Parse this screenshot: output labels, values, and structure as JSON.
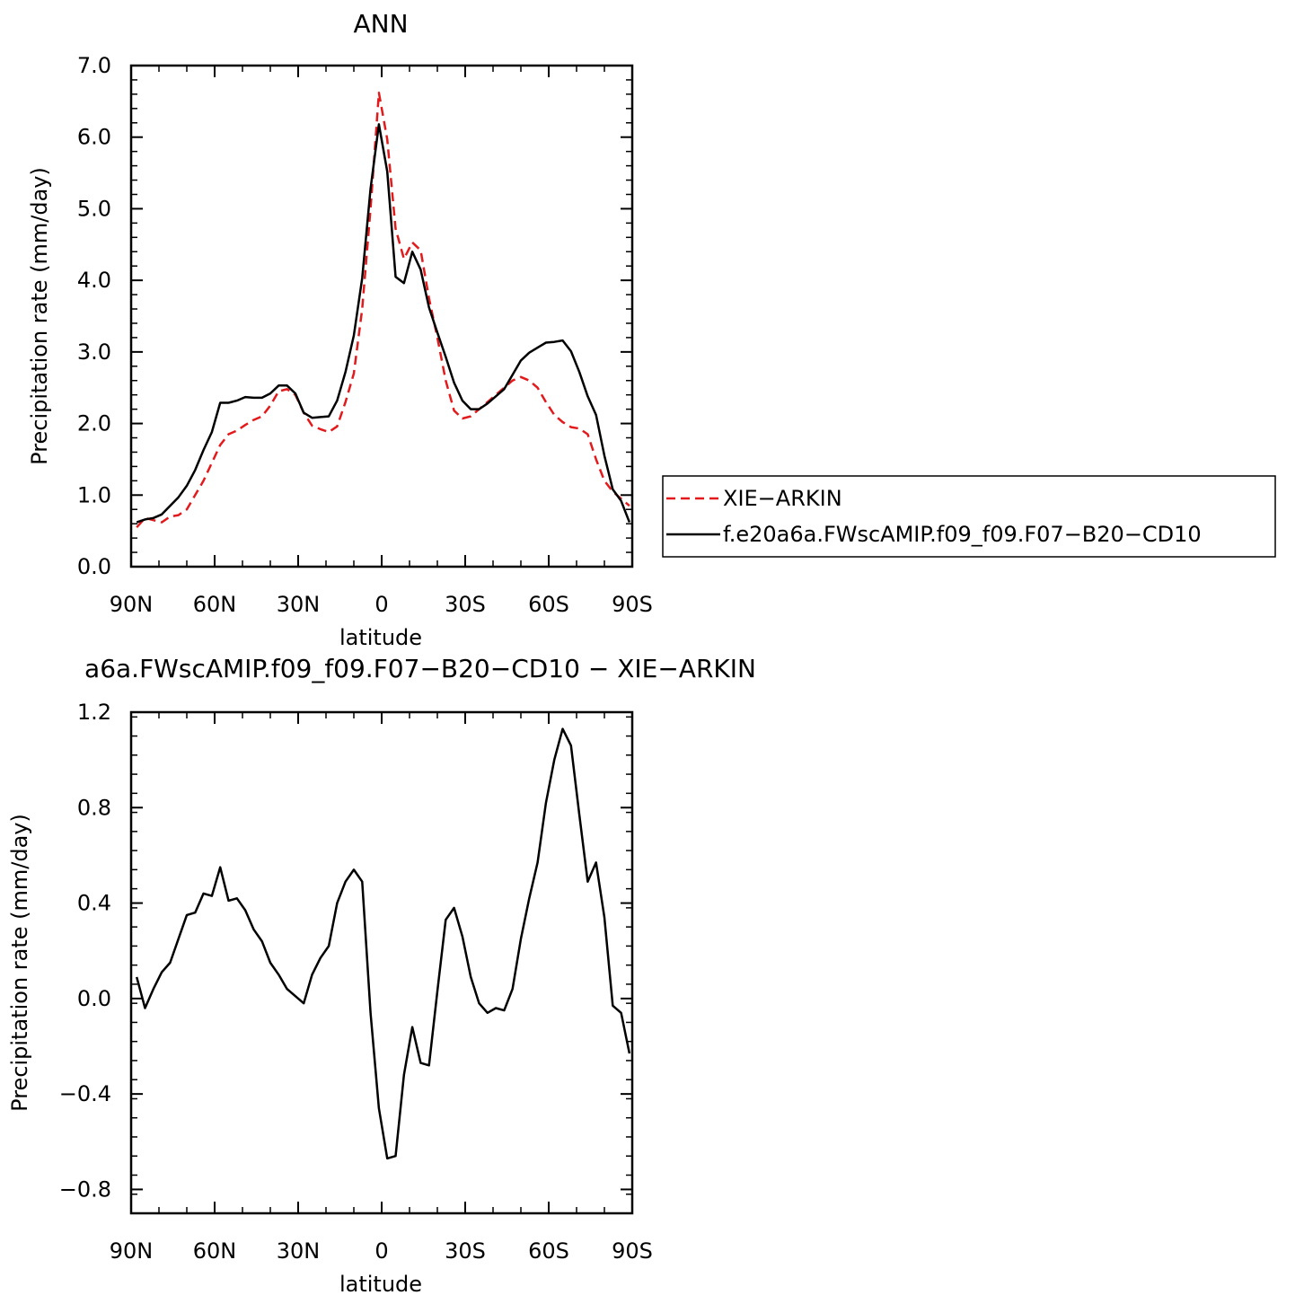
{
  "chart_data": [
    {
      "type": "line",
      "title": "ANN",
      "xlabel": "latitude",
      "ylabel": "Precipitation rate (mm/day)",
      "xlim": [
        90,
        -90
      ],
      "ylim": [
        0.0,
        7.0
      ],
      "xticks": [
        90,
        60,
        30,
        0,
        -30,
        -60,
        -90
      ],
      "xtick_labels": [
        "90N",
        "60N",
        "30N",
        "0",
        "30S",
        "60S",
        "90S"
      ],
      "yticks": [
        0.0,
        1.0,
        2.0,
        3.0,
        4.0,
        5.0,
        6.0,
        7.0
      ],
      "ytick_labels": [
        "0.0",
        "1.0",
        "2.0",
        "3.0",
        "4.0",
        "5.0",
        "6.0",
        "7.0"
      ],
      "legend": "right-outside",
      "series": [
        {
          "name": "XIE−ARKIN",
          "color": "#e31a1c",
          "dash": "dashed",
          "x": [
            88,
            85,
            82,
            79,
            76,
            73,
            70,
            67,
            64,
            61,
            58,
            55,
            52,
            49,
            46,
            43,
            40,
            37,
            34,
            31,
            28,
            25,
            22,
            19,
            16,
            13,
            10,
            7,
            4,
            1,
            -2,
            -5,
            -8,
            -11,
            -14,
            -17,
            -20,
            -23,
            -26,
            -29,
            -32,
            -35,
            -38,
            -41,
            -44,
            -47,
            -50,
            -53,
            -56,
            -59,
            -62,
            -65,
            -68,
            -71,
            -74,
            -77,
            -80,
            -83,
            -86,
            -89
          ],
          "values": [
            0.55,
            0.68,
            0.65,
            0.62,
            0.7,
            0.72,
            0.8,
            1.0,
            1.2,
            1.45,
            1.7,
            1.85,
            1.9,
            1.98,
            2.05,
            2.1,
            2.25,
            2.45,
            2.48,
            2.4,
            2.15,
            1.97,
            1.92,
            1.88,
            1.96,
            2.3,
            2.7,
            3.6,
            5.0,
            6.62,
            5.97,
            4.72,
            4.3,
            4.53,
            4.42,
            3.75,
            3.2,
            2.6,
            2.18,
            2.07,
            2.1,
            2.2,
            2.3,
            2.4,
            2.5,
            2.6,
            2.65,
            2.6,
            2.5,
            2.3,
            2.12,
            2.02,
            1.95,
            1.93,
            1.85,
            1.5,
            1.2,
            1.05,
            0.95,
            0.85
          ]
        },
        {
          "name": "f.e20a6a.FWscAMIP.f09_f09.F07−B20−CD10",
          "color": "#000000",
          "dash": "solid",
          "x": [
            88,
            85,
            82,
            79,
            76,
            73,
            70,
            67,
            64,
            61,
            58,
            55,
            52,
            49,
            46,
            43,
            40,
            37,
            34,
            31,
            28,
            25,
            22,
            19,
            16,
            13,
            10,
            7,
            4,
            1,
            -2,
            -5,
            -8,
            -11,
            -14,
            -17,
            -20,
            -23,
            -26,
            -29,
            -32,
            -35,
            -38,
            -41,
            -44,
            -47,
            -50,
            -53,
            -56,
            -59,
            -62,
            -65,
            -68,
            -71,
            -74,
            -77,
            -80,
            -83,
            -86,
            -89
          ],
          "values": [
            0.62,
            0.66,
            0.68,
            0.73,
            0.85,
            0.97,
            1.13,
            1.35,
            1.63,
            1.88,
            2.29,
            2.29,
            2.32,
            2.37,
            2.36,
            2.36,
            2.42,
            2.53,
            2.53,
            2.42,
            2.15,
            2.08,
            2.09,
            2.1,
            2.32,
            2.72,
            3.23,
            4.03,
            5.28,
            6.18,
            5.52,
            4.05,
            3.96,
            4.4,
            4.15,
            3.62,
            3.27,
            2.93,
            2.57,
            2.32,
            2.2,
            2.2,
            2.28,
            2.38,
            2.48,
            2.68,
            2.88,
            2.99,
            3.06,
            3.13,
            3.14,
            3.16,
            3.01,
            2.72,
            2.38,
            2.12,
            1.55,
            1.08,
            0.92,
            0.62
          ]
        }
      ]
    },
    {
      "type": "line",
      "title": "a6a.FWscAMIP.f09_f09.F07−B20−CD10  −  XIE−ARKIN",
      "xlabel": "latitude",
      "ylabel": "Precipitation rate (mm/day)",
      "xlim": [
        90,
        -90
      ],
      "ylim": [
        -0.9,
        1.2
      ],
      "xticks": [
        90,
        60,
        30,
        0,
        -30,
        -60,
        -90
      ],
      "xtick_labels": [
        "90N",
        "60N",
        "30N",
        "0",
        "30S",
        "60S",
        "90S"
      ],
      "yticks": [
        -0.8,
        -0.4,
        0.0,
        0.4,
        0.8,
        1.2
      ],
      "ytick_labels": [
        "−0.8",
        "−0.4",
        "0.0",
        "0.4",
        "0.8",
        "1.2"
      ],
      "series": [
        {
          "color": "#000000",
          "dash": "solid",
          "x": [
            88,
            85,
            82,
            79,
            76,
            73,
            70,
            67,
            64,
            61,
            58,
            55,
            52,
            49,
            46,
            43,
            40,
            37,
            34,
            31,
            28,
            25,
            22,
            19,
            16,
            13,
            10,
            7,
            4,
            1,
            -2,
            -5,
            -8,
            -11,
            -14,
            -17,
            -20,
            -23,
            -26,
            -29,
            -32,
            -35,
            -38,
            -41,
            -44,
            -47,
            -50,
            -53,
            -56,
            -59,
            -62,
            -65,
            -68,
            -71,
            -74,
            -77,
            -80,
            -83,
            -86,
            -89
          ],
          "values": [
            0.09,
            -0.04,
            0.04,
            0.11,
            0.15,
            0.25,
            0.35,
            0.36,
            0.44,
            0.43,
            0.55,
            0.41,
            0.42,
            0.37,
            0.29,
            0.24,
            0.15,
            0.1,
            0.04,
            0.01,
            -0.02,
            0.1,
            0.17,
            0.22,
            0.4,
            0.49,
            0.54,
            0.49,
            -0.06,
            -0.46,
            -0.67,
            -0.66,
            -0.32,
            -0.12,
            -0.27,
            -0.28,
            0.03,
            0.33,
            0.38,
            0.26,
            0.09,
            -0.02,
            -0.06,
            -0.04,
            -0.05,
            0.04,
            0.25,
            0.42,
            0.57,
            0.82,
            1.0,
            1.13,
            1.06,
            0.77,
            0.49,
            0.57,
            0.34,
            -0.03,
            -0.06,
            -0.23
          ]
        }
      ]
    }
  ]
}
